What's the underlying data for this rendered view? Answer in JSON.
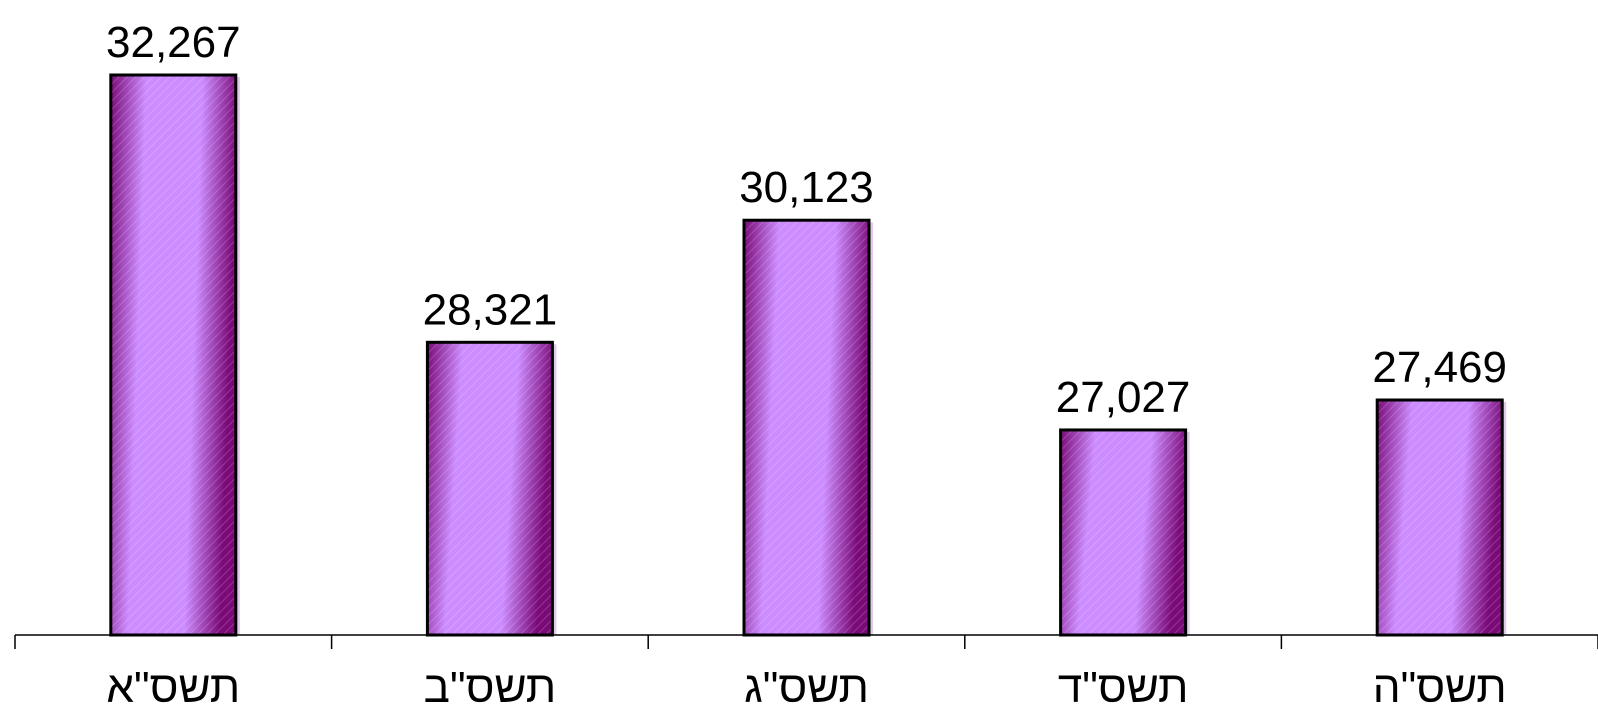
{
  "chart_data": {
    "type": "bar",
    "categories": [
      "תשס\"א",
      "תשס\"ב",
      "תשס\"ג",
      "תשס\"ד",
      "תשס\"ה"
    ],
    "values": [
      32267,
      28321,
      30123,
      27027,
      27469
    ],
    "value_labels": [
      "32,267",
      "28,321",
      "30,123",
      "27,027",
      "27,469"
    ],
    "title": "",
    "xlabel": "",
    "ylabel": "",
    "ylim": [
      24000,
      33000
    ],
    "grid": false,
    "legend": "none",
    "colors": {
      "bar_light": "#cc8cff",
      "bar_dark": "#7a0a78",
      "outline": "#000000",
      "axis": "#000000"
    }
  }
}
